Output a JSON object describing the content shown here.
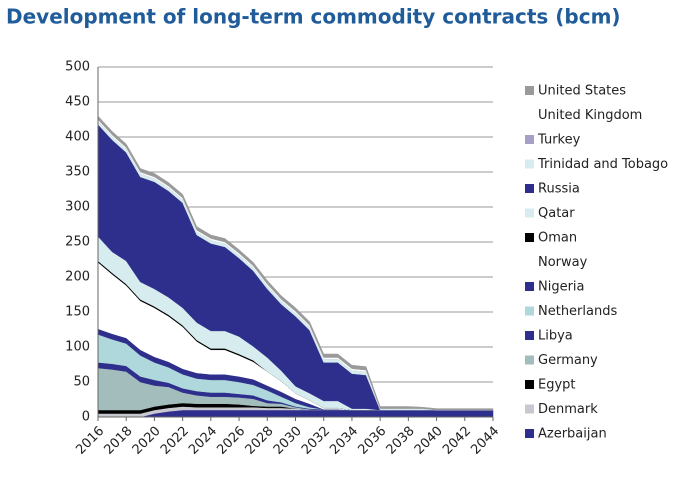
{
  "chart_data": {
    "type": "stacked-area",
    "title": "Development of long-term commodity contracts (bcm)",
    "x": [
      2016,
      2017,
      2018,
      2019,
      2020,
      2021,
      2022,
      2023,
      2024,
      2025,
      2026,
      2027,
      2028,
      2029,
      2030,
      2031,
      2032,
      2033,
      2034,
      2035,
      2036,
      2037,
      2038,
      2039,
      2040,
      2041,
      2042,
      2043,
      2044
    ],
    "xlim": [
      2016,
      2044
    ],
    "xticks": [
      2016,
      2018,
      2020,
      2022,
      2024,
      2026,
      2028,
      2030,
      2032,
      2034,
      2036,
      2038,
      2040,
      2042,
      2044
    ],
    "ylim": [
      0,
      500
    ],
    "yticks": [
      0,
      50,
      100,
      150,
      200,
      250,
      300,
      350,
      400,
      450,
      500
    ],
    "grid": true,
    "legend": "right",
    "series": [
      {
        "name": "Azerbaijan",
        "color": "#2e2e8c",
        "values": [
          0,
          0,
          0,
          0,
          5,
          8,
          10,
          10,
          10,
          10,
          10,
          10,
          10,
          10,
          10,
          10,
          10,
          10,
          10,
          10,
          10,
          10,
          10,
          10,
          10,
          10,
          10,
          10,
          10
        ]
      },
      {
        "name": "Denmark",
        "color": "#c8c8d0",
        "values": [
          5,
          5,
          5,
          5,
          5,
          5,
          5,
          4,
          4,
          4,
          4,
          4,
          3,
          3,
          2,
          1,
          0,
          0,
          0,
          0,
          0,
          0,
          0,
          0,
          0,
          0,
          0,
          0,
          0
        ]
      },
      {
        "name": "Egypt",
        "color": "#000000",
        "values": [
          5,
          5,
          5,
          5,
          5,
          5,
          5,
          5,
          5,
          5,
          4,
          2,
          2,
          2,
          0,
          0,
          0,
          0,
          0,
          0,
          0,
          0,
          0,
          0,
          0,
          0,
          0,
          0,
          0
        ]
      },
      {
        "name": "Germany",
        "color": "#a3bcbc",
        "values": [
          60,
          58,
          55,
          40,
          30,
          25,
          15,
          12,
          10,
          10,
          10,
          10,
          5,
          4,
          2,
          0,
          0,
          0,
          0,
          0,
          0,
          0,
          0,
          0,
          0,
          0,
          0,
          0,
          0
        ]
      },
      {
        "name": "Libya",
        "color": "#2e2e8c",
        "values": [
          8,
          8,
          8,
          8,
          8,
          6,
          6,
          6,
          6,
          6,
          5,
          5,
          4,
          2,
          1,
          1,
          1,
          1,
          0,
          0,
          0,
          0,
          0,
          0,
          0,
          0,
          0,
          0,
          0
        ]
      },
      {
        "name": "Netherlands",
        "color": "#aed8dc",
        "values": [
          40,
          35,
          32,
          30,
          25,
          22,
          20,
          18,
          18,
          18,
          17,
          15,
          14,
          8,
          5,
          2,
          0,
          0,
          0,
          0,
          0,
          0,
          0,
          0,
          0,
          0,
          0,
          0,
          0
        ]
      },
      {
        "name": "Nigeria",
        "color": "#2e2e8c",
        "values": [
          8,
          8,
          8,
          8,
          8,
          8,
          8,
          8,
          8,
          8,
          8,
          8,
          7,
          7,
          6,
          5,
          0,
          0,
          0,
          0,
          0,
          0,
          0,
          0,
          0,
          0,
          0,
          0,
          0
        ]
      },
      {
        "name": "Norway",
        "color": "#ffffff",
        "values": [
          95,
          85,
          75,
          70,
          70,
          65,
          60,
          45,
          35,
          35,
          30,
          25,
          20,
          15,
          8,
          5,
          2,
          2,
          0,
          0,
          0,
          0,
          0,
          0,
          0,
          0,
          0,
          0,
          0
        ]
      },
      {
        "name": "Oman",
        "color": "#000000",
        "values": [
          2,
          2,
          2,
          2,
          2,
          2,
          2,
          2,
          2,
          2,
          2,
          2,
          0,
          0,
          0,
          0,
          0,
          0,
          0,
          0,
          0,
          0,
          0,
          0,
          0,
          0,
          0,
          0,
          0
        ]
      },
      {
        "name": "Qatar",
        "color": "#d6ecee",
        "values": [
          35,
          30,
          33,
          25,
          25,
          25,
          25,
          25,
          25,
          25,
          25,
          20,
          20,
          15,
          10,
          10,
          10,
          10,
          2,
          2,
          0,
          0,
          0,
          0,
          0,
          0,
          0,
          0,
          0
        ]
      },
      {
        "name": "Russia",
        "color": "#2e2e8c",
        "values": [
          160,
          160,
          155,
          150,
          153,
          152,
          150,
          125,
          125,
          120,
          112,
          108,
          98,
          95,
          100,
          90,
          55,
          55,
          50,
          48,
          0,
          0,
          0,
          0,
          0,
          0,
          0,
          0,
          0
        ]
      },
      {
        "name": "Trinidad and Tobago",
        "color": "#d6ecee",
        "values": [
          5,
          5,
          5,
          5,
          5,
          5,
          5,
          5,
          5,
          5,
          5,
          5,
          5,
          5,
          5,
          5,
          5,
          5,
          5,
          5,
          2,
          2,
          2,
          2,
          0,
          0,
          0,
          0,
          0
        ]
      },
      {
        "name": "Turkey",
        "color": "#a6a0c8",
        "values": [
          0,
          0,
          0,
          0,
          0,
          0,
          0,
          0,
          0,
          0,
          0,
          0,
          0,
          0,
          0,
          0,
          0,
          0,
          0,
          0,
          0,
          0,
          0,
          0,
          0,
          0,
          0,
          0,
          0
        ]
      },
      {
        "name": "United Kingdom",
        "color": "#ffffff",
        "values": [
          2,
          2,
          2,
          2,
          2,
          2,
          2,
          2,
          2,
          2,
          2,
          2,
          2,
          2,
          2,
          2,
          2,
          2,
          2,
          2,
          0,
          0,
          0,
          0,
          0,
          0,
          0,
          0,
          0
        ]
      },
      {
        "name": "United States",
        "color": "#9a9a9a",
        "values": [
          5,
          5,
          5,
          5,
          5,
          5,
          5,
          5,
          5,
          5,
          5,
          5,
          5,
          5,
          5,
          5,
          5,
          5,
          5,
          5,
          3,
          3,
          3,
          2,
          2,
          2,
          2,
          2,
          2
        ]
      }
    ]
  }
}
